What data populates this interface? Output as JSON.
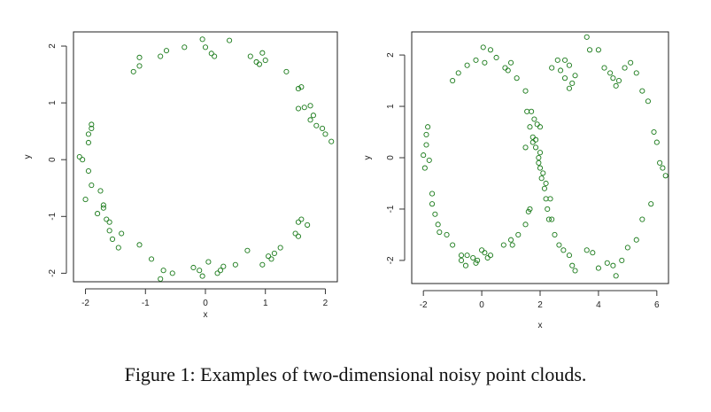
{
  "caption": "Figure 1: Examples of two-dimensional noisy point clouds.",
  "colors": {
    "point": "#1a7a1a",
    "axis": "#333333",
    "frame": "#222222"
  },
  "chart_data": [
    {
      "type": "scatter",
      "title": "",
      "xlabel": "x",
      "ylabel": "y",
      "xlim": [
        -2.2,
        2.2
      ],
      "ylim": [
        -2.15,
        2.25
      ],
      "xticks": [
        -2,
        -1,
        0,
        1,
        2
      ],
      "yticks": [
        -2,
        -1,
        0,
        1,
        2
      ],
      "grid": false,
      "series": [
        {
          "marker": "open-circle",
          "x": [
            -1.2,
            -1.1,
            -1.1,
            -0.75,
            -0.65,
            -0.35,
            -0.05,
            0.0,
            0.1,
            0.15,
            0.4,
            0.75,
            0.85,
            0.9,
            0.95,
            1.0,
            1.35,
            1.55,
            1.6,
            1.75,
            1.65,
            1.8,
            1.95,
            2.0,
            1.55,
            1.75,
            1.85,
            2.1,
            1.7,
            1.6,
            1.55,
            1.5,
            1.55,
            1.25,
            1.15,
            1.1,
            1.05,
            0.95,
            0.7,
            0.5,
            0.3,
            0.25,
            0.2,
            0.05,
            -0.05,
            -0.1,
            -0.2,
            -0.55,
            -0.7,
            -0.75,
            -0.9,
            -1.1,
            -1.4,
            -1.45,
            -1.55,
            -1.6,
            -1.6,
            -1.65,
            -1.7,
            -1.7,
            -1.8,
            -1.75,
            -1.9,
            -1.95,
            -2.0,
            -2.1,
            -2.05,
            -1.95,
            -1.95,
            -1.9,
            -1.9
          ],
          "y": [
            1.55,
            1.65,
            1.8,
            1.82,
            1.92,
            1.98,
            2.12,
            1.98,
            1.87,
            1.82,
            2.1,
            1.82,
            1.72,
            1.68,
            1.88,
            1.75,
            1.55,
            1.25,
            1.28,
            0.95,
            0.92,
            0.78,
            0.55,
            0.45,
            0.9,
            0.7,
            0.6,
            0.32,
            -1.15,
            -1.05,
            -1.1,
            -1.3,
            -1.35,
            -1.55,
            -1.65,
            -1.75,
            -1.7,
            -1.85,
            -1.6,
            -1.85,
            -1.88,
            -1.95,
            -2.0,
            -1.8,
            -2.05,
            -1.95,
            -1.9,
            -2.0,
            -1.95,
            -2.1,
            -1.75,
            -1.5,
            -1.3,
            -1.55,
            -1.4,
            -1.25,
            -1.1,
            -1.05,
            -0.85,
            -0.8,
            -0.95,
            -0.55,
            -0.45,
            -0.2,
            -0.7,
            0.05,
            0.0,
            0.3,
            0.45,
            0.55,
            0.62
          ]
        }
      ]
    },
    {
      "type": "scatter",
      "title": "",
      "xlabel": "x",
      "ylabel": "y",
      "xlim": [
        -2.4,
        6.4
      ],
      "ylim": [
        -2.45,
        2.45
      ],
      "xticks": [
        -2,
        0,
        2,
        4,
        6
      ],
      "yticks": [
        -2,
        -1,
        0,
        1,
        2
      ],
      "grid": false,
      "series": [
        {
          "marker": "open-circle",
          "x": [
            -2.0,
            -1.9,
            -1.9,
            -1.85,
            -1.8,
            -1.95,
            -1.7,
            -1.7,
            -1.6,
            -1.5,
            -1.45,
            -1.2,
            -1.0,
            -0.7,
            -0.55,
            -0.7,
            -0.5,
            -0.3,
            -0.15,
            0.1,
            0.2,
            0.3,
            0.0,
            -0.2,
            -1.0,
            -0.8,
            -0.5,
            -0.2,
            0.05,
            0.1,
            0.3,
            0.5,
            0.8,
            0.9,
            1.0,
            1.2,
            1.5,
            1.55,
            1.65,
            1.75,
            1.85,
            1.95,
            2.0,
            2.05,
            2.15,
            2.2,
            2.25,
            2.3,
            0.75,
            1.0,
            1.05,
            1.25,
            1.5,
            1.6,
            1.65,
            1.5,
            1.7,
            1.8,
            1.9,
            2.0,
            1.75,
            1.85,
            2.0,
            1.95,
            2.1,
            2.2,
            2.35,
            2.4,
            2.5,
            2.65,
            2.8,
            3.0,
            3.1,
            3.2,
            3.0,
            3.1,
            2.85,
            2.7,
            2.4,
            2.6,
            2.85,
            3.0,
            3.2,
            3.6,
            3.7,
            4.0,
            4.2,
            4.4,
            4.5,
            4.6,
            4.7,
            4.9,
            5.1,
            5.3,
            5.5,
            5.7,
            5.9,
            6.0,
            6.1,
            6.2,
            6.3,
            5.8,
            5.5,
            5.3,
            5.0,
            4.8,
            4.5,
            4.6,
            4.3,
            4.0,
            3.8,
            3.6
          ],
          "y": [
            0.05,
            0.25,
            0.45,
            0.6,
            -0.05,
            -0.2,
            -0.7,
            -0.9,
            -1.1,
            -1.3,
            -1.45,
            -1.5,
            -1.7,
            -1.9,
            -2.1,
            -2.0,
            -1.9,
            -1.95,
            -2.0,
            -1.85,
            -1.95,
            -1.9,
            -1.8,
            -2.05,
            1.5,
            1.65,
            1.8,
            1.9,
            2.15,
            1.85,
            2.1,
            1.95,
            1.75,
            1.7,
            1.85,
            1.55,
            1.3,
            0.9,
            0.6,
            0.4,
            0.2,
            0.0,
            -0.2,
            -0.4,
            -0.6,
            -0.8,
            -1.0,
            -1.2,
            -1.7,
            -1.6,
            -1.7,
            -1.5,
            -1.3,
            -1.05,
            -1.0,
            0.2,
            0.9,
            0.75,
            0.65,
            0.6,
            0.3,
            0.35,
            0.1,
            -0.1,
            -0.3,
            -0.5,
            -0.8,
            -1.2,
            -1.5,
            -1.7,
            -1.8,
            -1.9,
            -2.1,
            -2.2,
            1.35,
            1.45,
            1.55,
            1.7,
            1.75,
            1.9,
            1.9,
            1.8,
            1.6,
            2.35,
            2.1,
            2.1,
            1.75,
            1.65,
            1.55,
            1.4,
            1.5,
            1.75,
            1.85,
            1.65,
            1.3,
            1.1,
            0.5,
            0.3,
            -0.1,
            -0.2,
            -0.35,
            -0.9,
            -1.2,
            -1.6,
            -1.75,
            -2.0,
            -2.1,
            -2.3,
            -2.05,
            -2.15,
            -1.85,
            -1.8
          ]
        }
      ]
    }
  ]
}
